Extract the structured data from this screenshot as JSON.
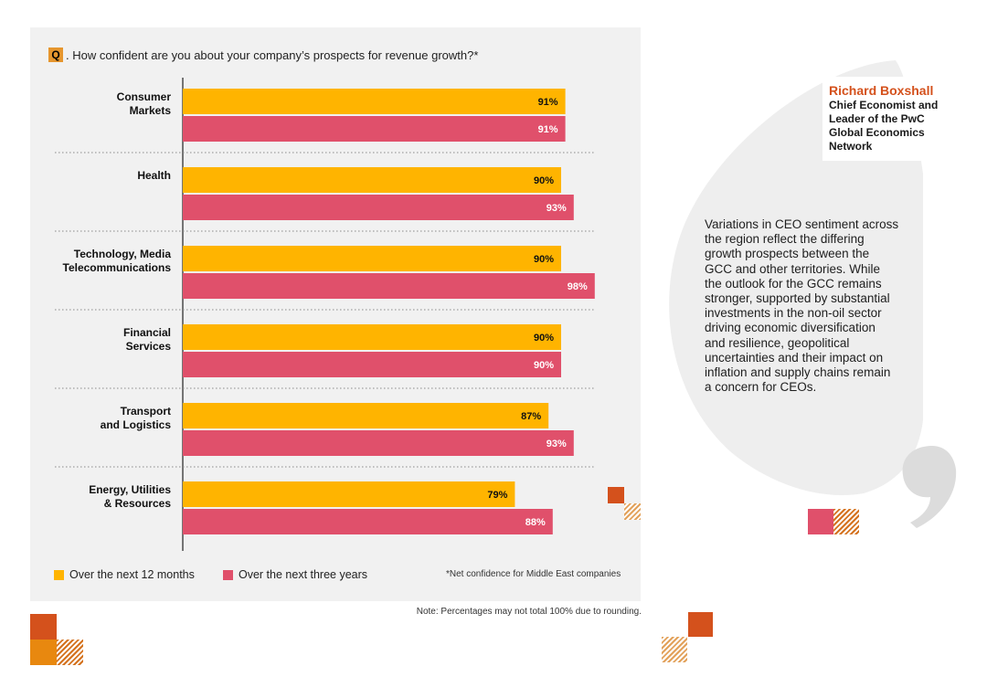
{
  "question": {
    "badge": "Q",
    "text": ". How confident are you about your company’s prospects for revenue growth?*"
  },
  "chart_data": {
    "type": "bar",
    "orientation": "horizontal",
    "title": "How confident are you about your company’s prospects for revenue growth?*",
    "categories": [
      [
        "Consumer",
        "Markets"
      ],
      [
        "Health"
      ],
      [
        "Technology, Media",
        "Telecommunications"
      ],
      [
        "Financial",
        "Services"
      ],
      [
        "Transport",
        "and Logistics"
      ],
      [
        "Energy, Utilities",
        "& Resources"
      ]
    ],
    "series": [
      {
        "name": "Over the next 12 months",
        "color": "#ffb400",
        "values": [
          91,
          90,
          90,
          90,
          87,
          79
        ]
      },
      {
        "name": "Over the next three years",
        "color": "#e0506b",
        "values": [
          91,
          93,
          98,
          90,
          93,
          88
        ]
      }
    ],
    "value_suffix": "%",
    "xlim": [
      0,
      100
    ],
    "grid": false,
    "legend": "bottom-left"
  },
  "legend": {
    "item1": "Over the next 12 months",
    "item2": "Over the next three years"
  },
  "footnote": "*Net confidence for Middle East companies",
  "note": "Note: Percentages may not total 100% due to rounding.",
  "author": {
    "name": "Richard Boxshall",
    "title_lines": [
      "Chief Economist and",
      "Leader of the PwC",
      "Global Economics",
      "Network"
    ]
  },
  "quote_lines": [
    "Variations in CEO sentiment across",
    "the region reflect the differing",
    "growth prospects between the",
    "GCC and other territories. While",
    "the outlook for the GCC remains",
    "stronger, supported by substantial",
    "investments in the non-oil sector",
    "driving economic diversification",
    "and resilience, geopolitical",
    "uncertainties and their impact on",
    "inflation and supply chains remain",
    "a concern for CEOs."
  ],
  "colors": {
    "orange": "#ffb400",
    "pink": "#e0506b",
    "brand_dark_orange": "#d4511c",
    "brand_orange": "#e6962e",
    "panel": "#f1f1f1",
    "quote_grey": "#eeeeee"
  }
}
